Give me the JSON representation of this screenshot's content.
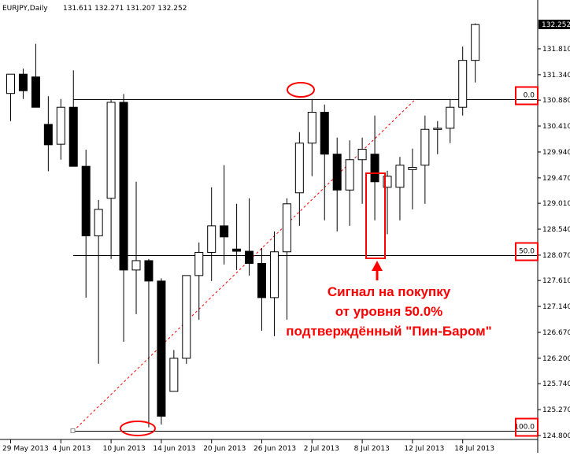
{
  "header": {
    "symbol": "EURJPY,Daily",
    "ohlc": "131.611 132.271 131.207 132.252"
  },
  "chart_data": {
    "type": "candlestick",
    "symbol": "EURJPY",
    "timeframe": "Daily",
    "ylim": [
      124.8,
      132.45
    ],
    "y_ticks": [
      "131.810",
      "131.340",
      "130.880",
      "130.410",
      "129.940",
      "129.470",
      "129.010",
      "128.540",
      "128.070",
      "127.610",
      "127.140",
      "126.670",
      "126.200",
      "125.740",
      "125.270",
      "124.800"
    ],
    "x_tick_labels": [
      "29 May 2013",
      "4 Jun 2013",
      "10 Jun 2013",
      "14 Jun 2013",
      "20 Jun 2013",
      "26 Jun 2013",
      "2 Jul 2013",
      "8 Jul 2013",
      "12 Jul 2013",
      "18 Jul 2013"
    ],
    "x_tick_index": [
      0,
      4,
      8,
      12,
      16,
      20,
      24,
      28,
      32,
      36
    ],
    "current_price": "132.252",
    "candles": [
      {
        "o": 131.0,
        "h": 131.35,
        "l": 130.5,
        "c": 131.35
      },
      {
        "o": 131.35,
        "h": 131.45,
        "l": 130.9,
        "c": 131.05
      },
      {
        "o": 131.3,
        "h": 131.9,
        "l": 130.75,
        "c": 130.75
      },
      {
        "o": 130.44,
        "h": 130.95,
        "l": 129.59,
        "c": 130.07
      },
      {
        "o": 130.08,
        "h": 130.9,
        "l": 129.8,
        "c": 130.75
      },
      {
        "o": 130.75,
        "h": 131.42,
        "l": 129.69,
        "c": 129.68
      },
      {
        "o": 129.68,
        "h": 129.98,
        "l": 127.3,
        "c": 128.42
      },
      {
        "o": 128.42,
        "h": 129.07,
        "l": 126.1,
        "c": 128.9
      },
      {
        "o": 129.1,
        "h": 130.9,
        "l": 128.0,
        "c": 130.84
      },
      {
        "o": 130.84,
        "h": 130.99,
        "l": 126.5,
        "c": 127.8
      },
      {
        "o": 127.8,
        "h": 129.4,
        "l": 127.0,
        "c": 127.97
      },
      {
        "o": 127.97,
        "h": 128.0,
        "l": 124.95,
        "c": 127.6
      },
      {
        "o": 127.6,
        "h": 127.65,
        "l": 125.0,
        "c": 125.15
      },
      {
        "o": 125.6,
        "h": 126.35,
        "l": 125.6,
        "c": 126.2
      },
      {
        "o": 126.2,
        "h": 127.7,
        "l": 126.1,
        "c": 127.7
      },
      {
        "o": 127.7,
        "h": 128.3,
        "l": 126.9,
        "c": 128.12
      },
      {
        "o": 128.12,
        "h": 129.3,
        "l": 127.6,
        "c": 128.6
      },
      {
        "o": 128.6,
        "h": 129.7,
        "l": 127.9,
        "c": 128.4
      },
      {
        "o": 128.18,
        "h": 129.0,
        "l": 127.8,
        "c": 128.14
      },
      {
        "o": 128.14,
        "h": 129.1,
        "l": 127.7,
        "c": 127.92
      },
      {
        "o": 127.92,
        "h": 128.2,
        "l": 126.7,
        "c": 127.3
      },
      {
        "o": 127.3,
        "h": 128.5,
        "l": 126.6,
        "c": 128.13
      },
      {
        "o": 128.13,
        "h": 129.1,
        "l": 126.9,
        "c": 129.0
      },
      {
        "o": 129.2,
        "h": 130.3,
        "l": 128.6,
        "c": 130.1
      },
      {
        "o": 130.1,
        "h": 130.9,
        "l": 129.5,
        "c": 130.66
      },
      {
        "o": 130.66,
        "h": 130.8,
        "l": 128.7,
        "c": 129.9
      },
      {
        "o": 129.9,
        "h": 130.2,
        "l": 128.5,
        "c": 129.25
      },
      {
        "o": 129.25,
        "h": 130.15,
        "l": 128.6,
        "c": 129.8
      },
      {
        "o": 129.8,
        "h": 130.2,
        "l": 129.0,
        "c": 129.99
      },
      {
        "o": 129.9,
        "h": 130.6,
        "l": 128.7,
        "c": 129.4
      },
      {
        "o": 129.3,
        "h": 129.6,
        "l": 128.45,
        "c": 129.5
      },
      {
        "o": 129.3,
        "h": 129.85,
        "l": 128.7,
        "c": 129.7
      },
      {
        "o": 129.62,
        "h": 130.0,
        "l": 128.9,
        "c": 129.66
      },
      {
        "o": 129.7,
        "h": 130.6,
        "l": 129.0,
        "c": 130.35
      },
      {
        "o": 130.35,
        "h": 130.5,
        "l": 129.9,
        "c": 130.37
      },
      {
        "o": 130.37,
        "h": 130.9,
        "l": 130.1,
        "c": 130.75
      },
      {
        "o": 130.75,
        "h": 131.85,
        "l": 130.6,
        "c": 131.6
      },
      {
        "o": 131.6,
        "h": 132.27,
        "l": 131.2,
        "c": 132.25
      }
    ],
    "fib_levels": [
      {
        "label": "0.0",
        "price": 130.9
      },
      {
        "label": "50.0",
        "price": 128.07
      },
      {
        "label": "100.0",
        "price": 124.88
      }
    ],
    "annotation": [
      "Сигнал на покупку",
      "от уровня 50.0%",
      "подтверждённый \"Пин-Баром\""
    ],
    "colors": {
      "bull_fill": "#ffffff",
      "bear_fill": "#000000",
      "candle_stroke": "#000000",
      "highlight": "#ff0000",
      "fib_line": "#000000",
      "trend_line": "#ff0000",
      "price_label_bg": "#000000",
      "price_label_text": "#ffffff"
    }
  }
}
